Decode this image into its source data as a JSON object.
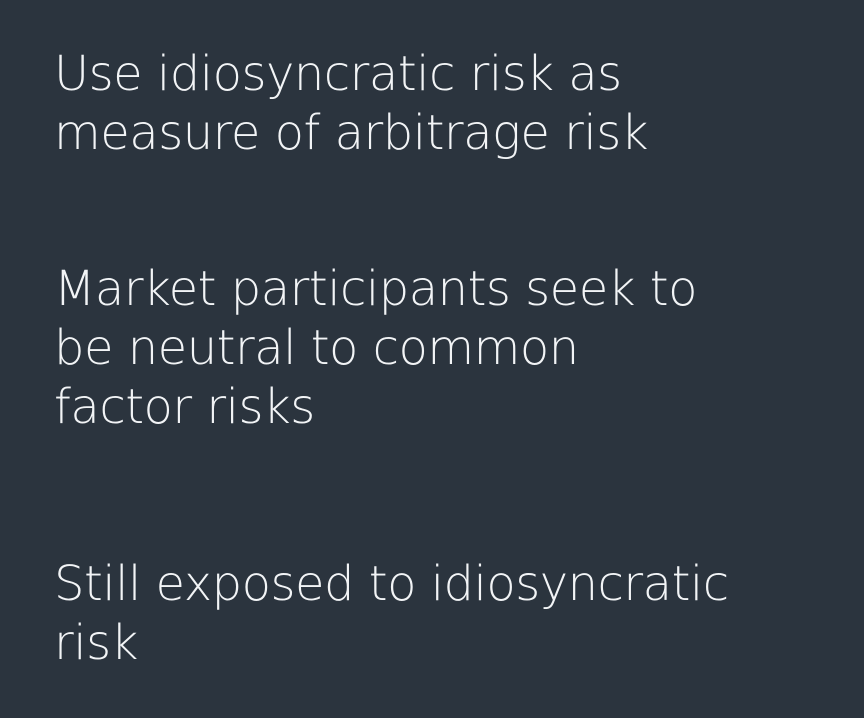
{
  "slide": {
    "points": [
      {
        "lines": [
          "Use idiosyncratic risk as",
          "measure of arbitrage risk"
        ]
      },
      {
        "lines": [
          "Market participants seek to",
          "be neutral to common",
          "factor risks"
        ]
      },
      {
        "lines": [
          "Still exposed to idiosyncratic",
          "risk"
        ]
      }
    ]
  }
}
